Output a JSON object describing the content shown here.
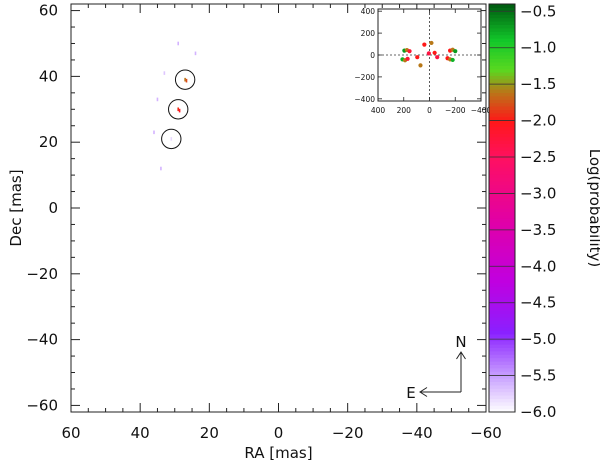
{
  "chart_data": [
    {
      "type": "scatter",
      "name": "main",
      "xlabel": "RA [mas]",
      "ylabel": "Dec [mas]",
      "xlim": [
        60,
        -60
      ],
      "ylim": [
        -62,
        62
      ],
      "xticks": [
        60,
        40,
        20,
        0,
        -20,
        -40,
        -60
      ],
      "xtick_labels": [
        "60",
        "40",
        "20",
        "0",
        "−20",
        "−40",
        "−60"
      ],
      "yticks": [
        60,
        40,
        20,
        0,
        -20,
        -40,
        -60
      ],
      "ytick_labels": [
        "60",
        "40",
        "20",
        "0",
        "−20",
        "−40",
        "−60"
      ],
      "grid": false,
      "points": [
        {
          "x": 29,
          "y": 50,
          "logp": -5.6
        },
        {
          "x": 24,
          "y": 47,
          "logp": -5.6
        },
        {
          "x": 33,
          "y": 41,
          "logp": -5.7
        },
        {
          "x": 27,
          "y": 39,
          "logp": -1.6
        },
        {
          "x": 26.6,
          "y": 38.7,
          "logp": -1.8
        },
        {
          "x": 35,
          "y": 33,
          "logp": -5.6
        },
        {
          "x": 29,
          "y": 30,
          "logp": -1.9
        },
        {
          "x": 28.6,
          "y": 29.6,
          "logp": -2.1
        },
        {
          "x": 36,
          "y": 23,
          "logp": -5.6
        },
        {
          "x": 31,
          "y": 21,
          "logp": -5.8
        },
        {
          "x": 34,
          "y": 12,
          "logp": -5.6
        }
      ],
      "circles": [
        {
          "x": 27,
          "y": 39,
          "r": 2.8
        },
        {
          "x": 29,
          "y": 30,
          "r": 2.8
        },
        {
          "x": 31,
          "y": 21,
          "r": 2.8
        }
      ],
      "compass": {
        "north": "N",
        "east": "E"
      }
    },
    {
      "type": "scatter",
      "name": "inset",
      "xlim": [
        400,
        -400
      ],
      "ylim": [
        -420,
        420
      ],
      "xticks": [
        400,
        200,
        0,
        -200,
        -400
      ],
      "xtick_labels": [
        "400",
        "200",
        "0",
        "−200",
        "−400"
      ],
      "yticks": [
        400,
        200,
        0,
        -200,
        -400
      ],
      "ytick_labels": [
        "400",
        "200",
        "0",
        "−200",
        "−400"
      ],
      "crosshair": true,
      "points": [
        {
          "x": 195,
          "y": 40,
          "logp": -0.7
        },
        {
          "x": 175,
          "y": 45,
          "logp": -1.6
        },
        {
          "x": 155,
          "y": 35,
          "logp": -2.2
        },
        {
          "x": 210,
          "y": -40,
          "logp": -0.8
        },
        {
          "x": 190,
          "y": -48,
          "logp": -1.6
        },
        {
          "x": 170,
          "y": -35,
          "logp": -2.2
        },
        {
          "x": -160,
          "y": 40,
          "logp": -2.0
        },
        {
          "x": -180,
          "y": 48,
          "logp": -1.6
        },
        {
          "x": -200,
          "y": 35,
          "logp": -0.7
        },
        {
          "x": -140,
          "y": -30,
          "logp": -2.0
        },
        {
          "x": -160,
          "y": -40,
          "logp": -1.6
        },
        {
          "x": -180,
          "y": -45,
          "logp": -0.8
        },
        {
          "x": 40,
          "y": 95,
          "logp": -2.0
        },
        {
          "x": -15,
          "y": 110,
          "logp": -1.6
        },
        {
          "x": 5,
          "y": 15,
          "logp": -2.3
        },
        {
          "x": -40,
          "y": 20,
          "logp": -2.0
        },
        {
          "x": 70,
          "y": -95,
          "logp": -1.6
        },
        {
          "x": 95,
          "y": -20,
          "logp": -2.0
        },
        {
          "x": -60,
          "y": -20,
          "logp": -2.3
        }
      ]
    },
    {
      "type": "colorbar",
      "name": "colorbar",
      "label": "Log(probability)",
      "range": [
        -6.0,
        -0.4
      ],
      "ticks": [
        -0.5,
        -1.0,
        -1.5,
        -2.0,
        -2.5,
        -3.0,
        -3.5,
        -4.0,
        -4.5,
        -5.0,
        -5.5,
        -6.0
      ],
      "tick_labels": [
        "−0.5",
        "−1.0",
        "−1.5",
        "−2.0",
        "−2.5",
        "−3.0",
        "−3.5",
        "−4.0",
        "−4.5",
        "−5.0",
        "−5.5",
        "−6.0"
      ],
      "colors": [
        {
          "v": -6.0,
          "c": "#ffffff"
        },
        {
          "v": -5.5,
          "c": "#c8a0ff"
        },
        {
          "v": -4.9,
          "c": "#8a20ff"
        },
        {
          "v": -4.2,
          "c": "#c000e0"
        },
        {
          "v": -3.4,
          "c": "#e000a8"
        },
        {
          "v": -2.5,
          "c": "#ff1060"
        },
        {
          "v": -2.0,
          "c": "#ff1818"
        },
        {
          "v": -1.6,
          "c": "#b87818"
        },
        {
          "v": -1.3,
          "c": "#5ad820"
        },
        {
          "v": -0.9,
          "c": "#12c82a"
        },
        {
          "v": -0.4,
          "c": "#005a10"
        }
      ]
    }
  ]
}
